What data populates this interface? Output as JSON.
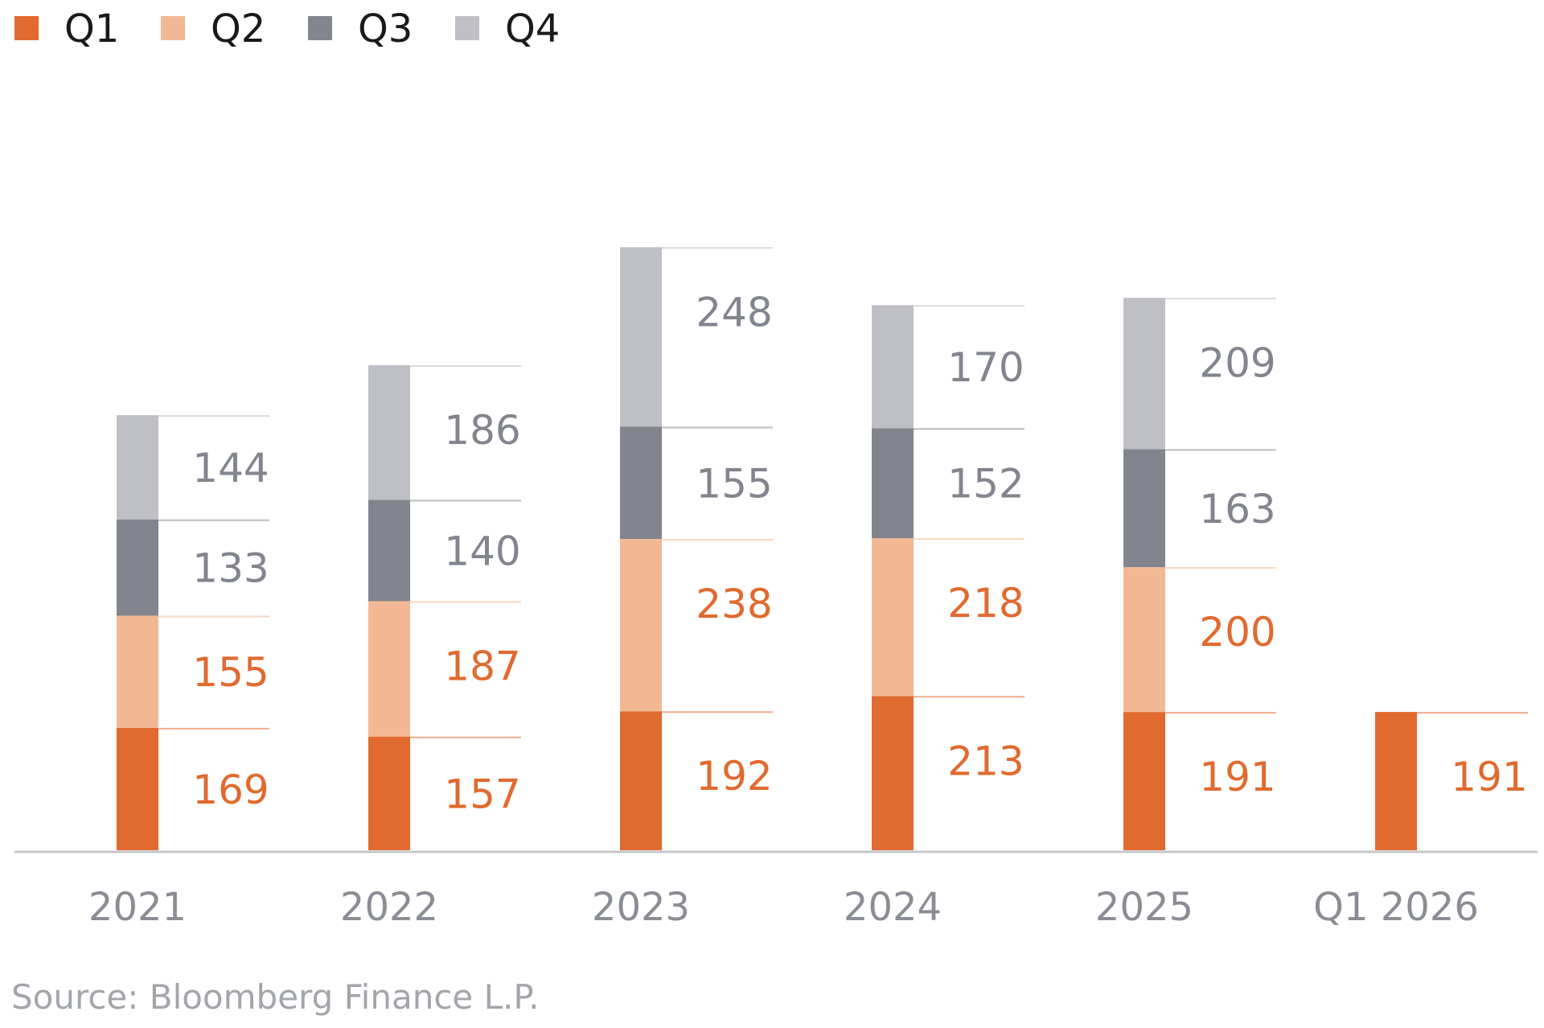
{
  "chart_data": {
    "type": "bar",
    "stacked": true,
    "categories": [
      "2021",
      "2022",
      "2023",
      "2024",
      "2025",
      "Q1 2026"
    ],
    "series": [
      {
        "name": "Q1",
        "values": [
          169,
          157,
          192,
          213,
          191,
          191
        ]
      },
      {
        "name": "Q2",
        "values": [
          155,
          187,
          238,
          218,
          200,
          null
        ]
      },
      {
        "name": "Q3",
        "values": [
          133,
          140,
          155,
          152,
          163,
          null
        ]
      },
      {
        "name": "Q4",
        "values": [
          144,
          186,
          248,
          170,
          209,
          null
        ]
      }
    ],
    "legend_position": "top-left",
    "grid": false,
    "ylim": [
      0,
      850
    ],
    "colors": {
      "Q1": "#e06a2f",
      "Q2": "#f2b894",
      "Q3": "#82858d",
      "Q4": "#bfc0c5",
      "label_orange": "#e06a2f",
      "label_gray": "#82858d"
    }
  },
  "source": "Source: Bloomberg Finance L.P."
}
